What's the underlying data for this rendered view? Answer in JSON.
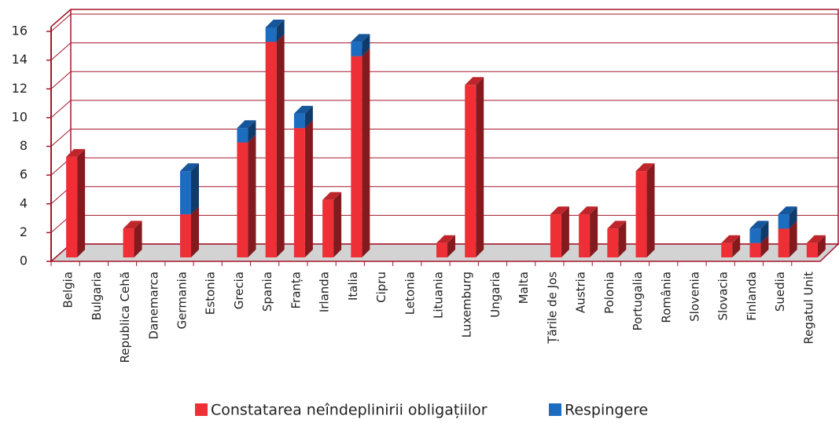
{
  "chart_data": {
    "type": "bar",
    "stacked": true,
    "three_d": true,
    "categories": [
      "Belgia",
      "Bulgaria",
      "Republica Cehă",
      "Danemarca",
      "Germania",
      "Estonia",
      "Grecia",
      "Spania",
      "Franța",
      "Irlanda",
      "Italia",
      "Cipru",
      "Letonia",
      "Lituania",
      "Luxemburg",
      "Ungaria",
      "Malta",
      "Țările de Jos",
      "Austria",
      "Polonia",
      "Portugalia",
      "România",
      "Slovenia",
      "Slovacia",
      "Finlanda",
      "Suedia",
      "Regatul Unit"
    ],
    "series": [
      {
        "name": "Constatarea neîndeplinirii obligațiilor",
        "color": "#ee2f36",
        "values": [
          7,
          0,
          2,
          0,
          3,
          0,
          8,
          15,
          9,
          4,
          14,
          0,
          0,
          1,
          12,
          0,
          0,
          3,
          3,
          2,
          6,
          0,
          0,
          1,
          1,
          2,
          1
        ]
      },
      {
        "name": "Respingere",
        "color": "#1c6cc0",
        "values": [
          0,
          0,
          0,
          0,
          3,
          0,
          1,
          1,
          1,
          0,
          1,
          0,
          0,
          0,
          0,
          0,
          0,
          0,
          0,
          0,
          0,
          0,
          0,
          0,
          1,
          1,
          0
        ]
      }
    ],
    "ylim": [
      0,
      16
    ],
    "yticks": [
      0,
      2,
      4,
      6,
      8,
      10,
      12,
      14,
      16
    ],
    "grid": true,
    "legend": "bottom"
  }
}
